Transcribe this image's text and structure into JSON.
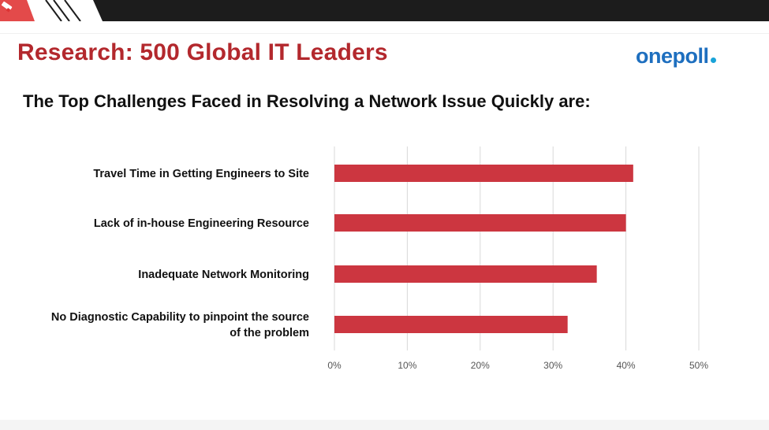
{
  "slide": {
    "title": "Research: 500 Global IT Leaders",
    "logo_text": "onepoll",
    "subtitle": "The Top Challenges Faced in Resolving a Network Issue Quickly are:"
  },
  "colors": {
    "title_red": "#b3282d",
    "bar_red": "#cc3640",
    "logo_blue": "#1e6fbf",
    "logo_dot": "#19a3d8",
    "grid": "#d9d9d9",
    "topbar": "#1c1c1c"
  },
  "icons": [
    "pen-icon"
  ],
  "chart_data": {
    "type": "bar",
    "orientation": "horizontal",
    "categories": [
      [
        "Travel Time in Getting Engineers to Site"
      ],
      [
        "Lack of in-house Engineering Resource"
      ],
      [
        "Inadequate Network Monitoring"
      ],
      [
        "No Diagnostic Capability to pinpoint the source",
        "of the problem"
      ]
    ],
    "values": [
      0.41,
      0.4,
      0.36,
      0.32
    ],
    "xlim": [
      0,
      0.5
    ],
    "ticks": [
      0,
      0.1,
      0.2,
      0.3,
      0.4,
      0.5
    ],
    "tick_labels": [
      "0%",
      "10%",
      "20%",
      "30%",
      "40%",
      "50%"
    ],
    "grid": true,
    "legend": "none"
  }
}
